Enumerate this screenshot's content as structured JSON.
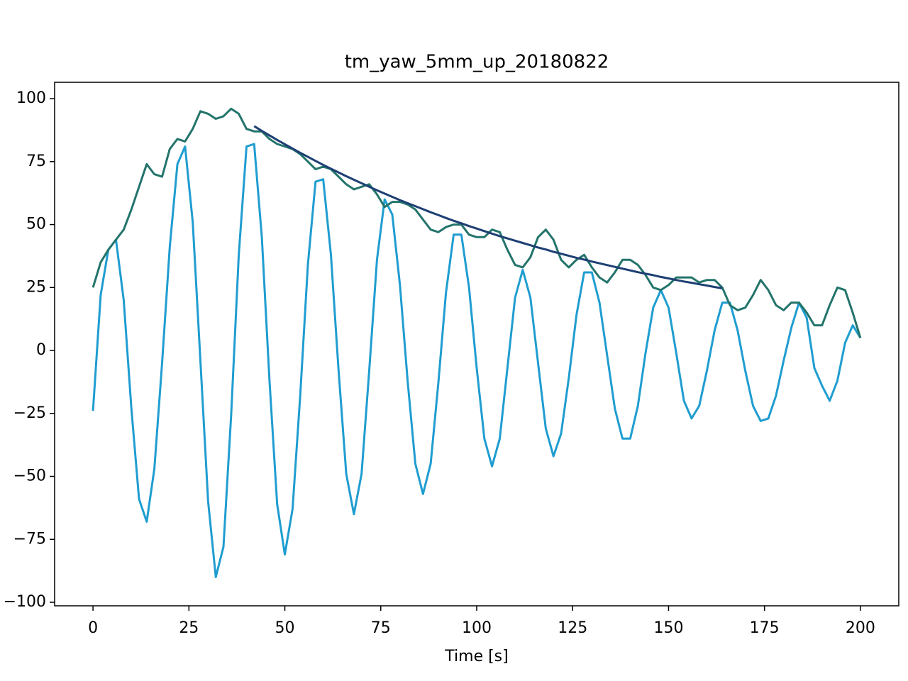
{
  "chart_data": {
    "type": "line",
    "title": "tm_yaw_5mm_up_20180822",
    "x_label": "Time [s]",
    "x": [
      0,
      2,
      4,
      6,
      8,
      10,
      12,
      14,
      16,
      18,
      20,
      22,
      24,
      26,
      28,
      30,
      32,
      34,
      36,
      38,
      40,
      42,
      44,
      46,
      48,
      50,
      52,
      54,
      56,
      58,
      60,
      62,
      64,
      66,
      68,
      70,
      72,
      74,
      76,
      78,
      80,
      82,
      84,
      86,
      88,
      90,
      92,
      94,
      96,
      98,
      100,
      102,
      104,
      106,
      108,
      110,
      112,
      114,
      116,
      118,
      120,
      122,
      124,
      126,
      128,
      130,
      132,
      134,
      136,
      138,
      140,
      142,
      144,
      146,
      148,
      150,
      152,
      154,
      156,
      158,
      160,
      162,
      164,
      166,
      168,
      170,
      172,
      174,
      176,
      178,
      180,
      182,
      184,
      186,
      188,
      190,
      192,
      194,
      196,
      198,
      200
    ],
    "series": [
      {
        "color": "#1f9dd0",
        "values": [
          -24,
          22,
          40,
          44,
          20,
          -23,
          -59,
          -68,
          -47,
          -5,
          41,
          74,
          81,
          51,
          -4,
          -60,
          -90,
          -78,
          -26,
          38,
          81,
          82,
          45,
          -12,
          -61,
          -81,
          -63,
          -18,
          34,
          67,
          68,
          38,
          -8,
          -49,
          -65,
          -49,
          -8,
          36,
          60,
          54,
          26,
          -12,
          -45,
          -57,
          -45,
          -13,
          23,
          46,
          46,
          25,
          -7,
          -35,
          -46,
          -35,
          -7,
          21,
          32,
          21,
          -5,
          -31,
          -42,
          -33,
          -11,
          14,
          31,
          31,
          19,
          -2,
          -23,
          -35,
          -35,
          -22,
          -1,
          17,
          24,
          17,
          -1,
          -20,
          -27,
          -22,
          -8,
          8,
          19,
          19,
          8,
          -8,
          -22,
          -28,
          -27,
          -18,
          -4,
          9,
          19,
          13,
          -7,
          -14,
          -20,
          -12,
          3,
          10,
          5
        ]
      },
      {
        "color": "#23746b",
        "values": [
          25,
          35,
          40,
          44,
          48,
          56,
          65,
          74,
          70,
          69,
          80,
          84,
          83,
          88,
          95,
          94,
          92,
          93,
          96,
          94,
          88,
          87,
          87,
          84,
          82,
          81,
          80,
          78,
          75,
          72,
          73,
          72,
          69,
          66,
          64,
          65,
          66,
          62,
          57,
          59,
          59,
          58,
          56,
          52,
          48,
          47,
          49,
          50,
          50,
          46,
          45,
          45,
          48,
          47,
          40,
          34,
          33,
          37,
          45,
          48,
          44,
          36,
          33,
          36,
          38,
          33,
          29,
          27,
          31,
          36,
          36,
          34,
          30,
          25,
          24,
          26,
          29,
          29,
          29,
          27,
          28,
          28,
          25,
          18,
          16,
          17,
          22,
          28,
          24,
          18,
          16,
          19,
          19,
          15,
          10,
          10,
          18,
          25,
          24,
          15,
          5
        ]
      },
      {
        "color": "#1d3f73",
        "values": [
          null,
          null,
          null,
          null,
          null,
          null,
          null,
          null,
          null,
          null,
          null,
          null,
          null,
          null,
          null,
          null,
          null,
          null,
          null,
          null,
          null,
          89.1,
          87.2,
          85.4,
          83.6,
          81.9,
          80.2,
          78.5,
          76.9,
          75.3,
          73.7,
          72.2,
          70.7,
          69.2,
          67.8,
          66.4,
          65.0,
          63.6,
          62.3,
          61.0,
          59.7,
          58.5,
          57.3,
          56.1,
          54.9,
          53.8,
          52.6,
          51.5,
          50.5,
          49.4,
          48.4,
          47.4,
          46.4,
          45.4,
          44.5,
          43.6,
          42.7,
          41.8,
          40.9,
          40.1,
          39.2,
          38.4,
          37.6,
          36.8,
          36.1,
          35.3,
          34.6,
          33.9,
          33.2,
          32.5,
          31.8,
          31.1,
          30.5,
          29.9,
          29.2,
          28.6,
          28.0,
          27.4,
          26.9,
          26.3,
          25.8,
          25.2,
          24.7,
          null,
          null,
          null,
          null,
          null,
          null,
          null,
          null,
          null,
          null,
          null,
          null,
          null,
          null,
          null,
          null,
          null,
          null
        ]
      }
    ],
    "xlim": [
      -10,
      210
    ],
    "ylim": [
      -101.4,
      106.5
    ],
    "xticks": [
      0,
      25,
      50,
      75,
      100,
      125,
      150,
      175,
      200
    ],
    "yticks": [
      {
        "value": -100,
        "label": "−100"
      },
      {
        "value": -75,
        "label": "−75"
      },
      {
        "value": -50,
        "label": "−50"
      },
      {
        "value": -25,
        "label": "−25"
      },
      0,
      25,
      50,
      75,
      100
    ]
  }
}
